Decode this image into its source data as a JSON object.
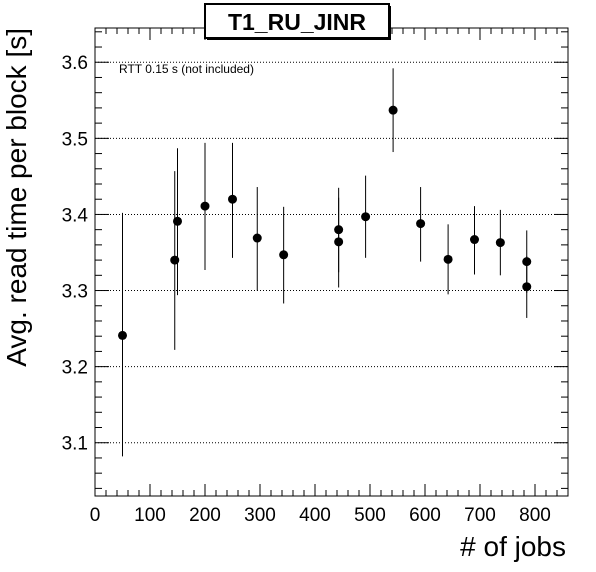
{
  "chart_data": {
    "type": "scatter",
    "title": "T1_RU_JINR",
    "xlabel": "# of jobs",
    "ylabel": "Avg. read time per block [s]",
    "annotation": "RTT 0.15 s (not included)",
    "xlim": [
      0,
      860
    ],
    "ylim": [
      3.03,
      3.645
    ],
    "x_ticks": [
      "0",
      "100",
      "200",
      "300",
      "400",
      "500",
      "600",
      "700",
      "800"
    ],
    "y_ticks": [
      "3.1",
      "3.2",
      "3.3",
      "3.4",
      "3.5",
      "3.6"
    ],
    "y_gridlines": [
      3.1,
      3.2,
      3.3,
      3.4,
      3.5,
      3.6
    ],
    "grid": "horizontal dotted",
    "marker_color": "#000000",
    "points": [
      {
        "x": 50,
        "y": 3.241,
        "err_low": 3.082,
        "err_high": 3.402
      },
      {
        "x": 145,
        "y": 3.34,
        "err_low": 3.222,
        "err_high": 3.457
      },
      {
        "x": 150,
        "y": 3.391,
        "err_low": 3.294,
        "err_high": 3.487
      },
      {
        "x": 200,
        "y": 3.411,
        "err_low": 3.327,
        "err_high": 3.494
      },
      {
        "x": 250,
        "y": 3.42,
        "err_low": 3.343,
        "err_high": 3.494
      },
      {
        "x": 295,
        "y": 3.369,
        "err_low": 3.3,
        "err_high": 3.436
      },
      {
        "x": 343,
        "y": 3.347,
        "err_low": 3.283,
        "err_high": 3.41
      },
      {
        "x": 443,
        "y": 3.38,
        "err_low": 3.324,
        "err_high": 3.435
      },
      {
        "x": 443,
        "y": 3.364,
        "err_low": 3.304,
        "err_high": 3.422
      },
      {
        "x": 492,
        "y": 3.397,
        "err_low": 3.343,
        "err_high": 3.451
      },
      {
        "x": 542,
        "y": 3.537,
        "err_low": 3.482,
        "err_high": 3.592
      },
      {
        "x": 592,
        "y": 3.388,
        "err_low": 3.338,
        "err_high": 3.436
      },
      {
        "x": 642,
        "y": 3.341,
        "err_low": 3.295,
        "err_high": 3.387
      },
      {
        "x": 690,
        "y": 3.367,
        "err_low": 3.321,
        "err_high": 3.411
      },
      {
        "x": 737,
        "y": 3.363,
        "err_low": 3.32,
        "err_high": 3.406
      },
      {
        "x": 785,
        "y": 3.338,
        "err_low": 3.297,
        "err_high": 3.379
      },
      {
        "x": 785,
        "y": 3.305,
        "err_low": 3.264,
        "err_high": 3.345
      }
    ]
  }
}
